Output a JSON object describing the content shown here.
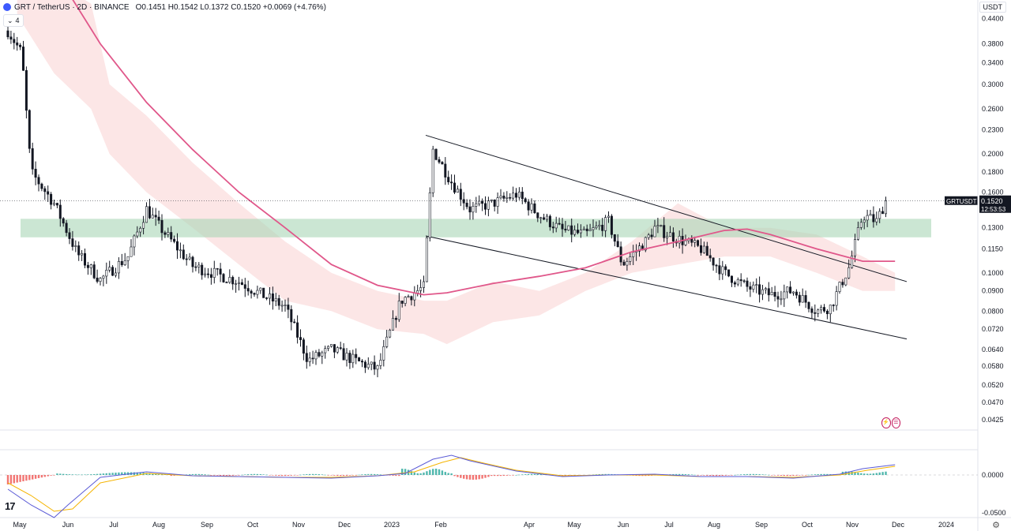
{
  "header": {
    "symbol": "GRT / TetherUS · 2D · BINANCE",
    "ohlc": "O0.1451 H0.1542 L0.1372 C0.1520 +0.0069 (+4.76%)",
    "collapse_count": "4",
    "currency": "USDT"
  },
  "badges": [
    "⚡",
    "☰"
  ],
  "colors": {
    "up": "#26a69a",
    "down": "#131722",
    "ma": "#e0578a",
    "cloud": "#f8c8c8",
    "zone": "#a8d5b5",
    "macd_line": "#5b5bd6",
    "signal_line": "#f5b400",
    "hist_up": "#26a69a",
    "hist_down": "#ef5350"
  },
  "chart_data": {
    "type": "candlestick",
    "log_scale": true,
    "ylim": [
      0.04,
      0.46
    ],
    "price_ticks": [
      "0.4400",
      "0.3800",
      "0.3400",
      "0.3000",
      "0.2600",
      "0.2300",
      "0.2000",
      "0.1800",
      "0.1600",
      "0.1300",
      "0.1150",
      "0.1000",
      "0.0900",
      "0.0800",
      "0.0720",
      "0.0640",
      "0.0580",
      "0.0520",
      "0.0470",
      "0.0425"
    ],
    "last_price": {
      "label": "GRTUSDT",
      "value": "0.1520",
      "countdown": "12:53:53"
    },
    "x_axis_labels": [
      "May",
      "Jun",
      "Jul",
      "Aug",
      "Sep",
      "Oct",
      "Nov",
      "Dec",
      "2023",
      "Feb",
      "Apr",
      "May",
      "Jun",
      "Jul",
      "Aug",
      "Sep",
      "Oct",
      "Nov",
      "Dec",
      "2024"
    ],
    "support_zone": [
      0.123,
      0.137
    ],
    "channel_upper": [
      [
        0.223,
        0.095
      ]
    ],
    "channel_lower": [
      [
        0.124,
        0.068
      ]
    ],
    "moving_average_key": [
      [
        "May-2022",
        0.56
      ],
      [
        "Jun-2022",
        0.38
      ],
      [
        "Jul-2022",
        0.27
      ],
      [
        "Aug-2022",
        0.205
      ],
      [
        "Sep-2022",
        0.16
      ],
      [
        "Oct-2022",
        0.13
      ],
      [
        "Nov-2022",
        0.105
      ],
      [
        "Dec-2022",
        0.093
      ],
      [
        "Jan-2023",
        0.088
      ],
      [
        "Feb-2023",
        0.091
      ],
      [
        "Apr-2023",
        0.098
      ],
      [
        "May-2023",
        0.103
      ],
      [
        "Jun-2023",
        0.113
      ],
      [
        "Jul-2023",
        0.12
      ],
      [
        "Aug-2023",
        0.127
      ],
      [
        "Sep-2023",
        0.125
      ],
      [
        "Oct-2023",
        0.113
      ],
      [
        "Nov-2023",
        0.107
      ]
    ],
    "closes_key": [
      [
        "May-2022",
        0.41
      ],
      [
        "mid-May",
        0.18
      ],
      [
        "Jun",
        0.15
      ],
      [
        "mid-Jun",
        0.112
      ],
      [
        "Jul",
        0.096
      ],
      [
        "Aug",
        0.145
      ],
      [
        "Sep",
        0.104
      ],
      [
        "Oct",
        0.095
      ],
      [
        "Nov",
        0.082
      ],
      [
        "mid-Nov",
        0.06
      ],
      [
        "Dec",
        0.064
      ],
      [
        "Jan-2023",
        0.057
      ],
      [
        "mid-Jan",
        0.085
      ],
      [
        "Feb",
        0.205
      ],
      [
        "Mar",
        0.145
      ],
      [
        "Apr",
        0.158
      ],
      [
        "May",
        0.128
      ],
      [
        "Jun",
        0.135
      ],
      [
        "mid-Jun",
        0.105
      ],
      [
        "Jul",
        0.13
      ],
      [
        "Aug",
        0.12
      ],
      [
        "Sep",
        0.092
      ],
      [
        "Oct",
        0.088
      ],
      [
        "mid-Oct",
        0.08
      ],
      [
        "Nov",
        0.103
      ],
      [
        "mid-Nov",
        0.14
      ],
      [
        "Dec",
        0.152
      ]
    ],
    "macd": {
      "ticks": [
        "0.0000",
        "-0.0500"
      ]
    }
  }
}
